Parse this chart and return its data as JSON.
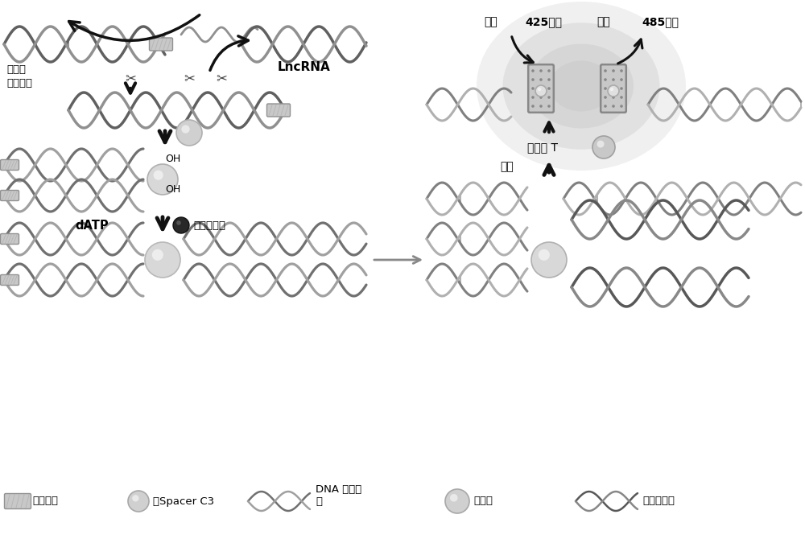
{
  "bg_color": "#ffffff",
  "text_elements": {
    "lncRNA": "LncRNA",
    "double_enzyme": "双链特\n异性切酶",
    "datp": "dATP",
    "terminal_transferase": "末端转移酶",
    "excite": "激发",
    "excite_nm": "425纳米",
    "emit": "发射",
    "emit_nm": "485纳米",
    "thioflavin": "硫黄素 T",
    "decompose": "分解",
    "legend_biotin": "：生物素",
    "legend_spacer": "：Spacer C3",
    "legend_dna_capture": "DNA 捕获探\n针",
    "legend_magnetic": "：磁珠",
    "legend_signal": "：信号探针"
  }
}
